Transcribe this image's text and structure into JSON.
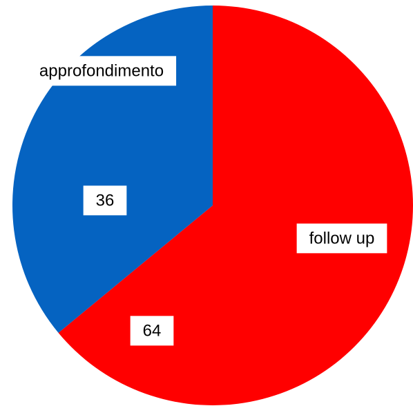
{
  "chart_data": {
    "type": "pie",
    "categories": [
      "follow up",
      "approfondimento"
    ],
    "values": [
      64,
      36
    ],
    "colors": [
      "#ff0000",
      "#0563c1"
    ]
  }
}
